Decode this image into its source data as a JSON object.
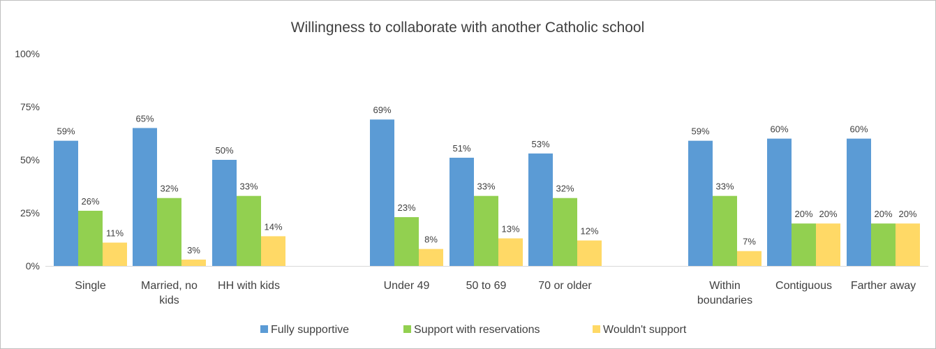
{
  "chart_data": {
    "type": "bar",
    "title": "Willingness to collaborate with another Catholic school",
    "xlabel": "",
    "ylabel": "",
    "ylim": [
      0,
      100
    ],
    "yticks": [
      "0%",
      "25%",
      "50%",
      "75%",
      "100%"
    ],
    "ytick_values": [
      0,
      25,
      50,
      75,
      100
    ],
    "grid": false,
    "legend_position": "bottom",
    "groups": [
      {
        "categories": [
          [
            "Single"
          ],
          [
            "Married, no",
            "kids"
          ],
          [
            "HH with kids"
          ]
        ]
      },
      {
        "categories": [
          [
            "Under 49"
          ],
          [
            "50 to 69"
          ],
          [
            "70 or older"
          ]
        ]
      },
      {
        "categories": [
          [
            "Within",
            "boundaries"
          ],
          [
            "Contiguous"
          ],
          [
            "Farther away"
          ]
        ]
      }
    ],
    "series": [
      {
        "name": "Fully supportive",
        "color": "#5b9bd5",
        "values": [
          59,
          65,
          50,
          69,
          51,
          53,
          59,
          60,
          60
        ],
        "labels": [
          "59%",
          "65%",
          "50%",
          "69%",
          "51%",
          "53%",
          "59%",
          "60%",
          "60%"
        ]
      },
      {
        "name": "Support with reservations",
        "color": "#92d050",
        "values": [
          26,
          32,
          33,
          23,
          33,
          32,
          33,
          20,
          20
        ],
        "labels": [
          "26%",
          "32%",
          "33%",
          "23%",
          "33%",
          "32%",
          "33%",
          "20%",
          "20%"
        ]
      },
      {
        "name": "Wouldn't support",
        "color": "#ffd966",
        "values": [
          11,
          3,
          14,
          8,
          13,
          12,
          7,
          20,
          20
        ],
        "labels": [
          "11%",
          "3%",
          "14%",
          "8%",
          "13%",
          "12%",
          "7%",
          "20%",
          "20%"
        ]
      }
    ]
  }
}
